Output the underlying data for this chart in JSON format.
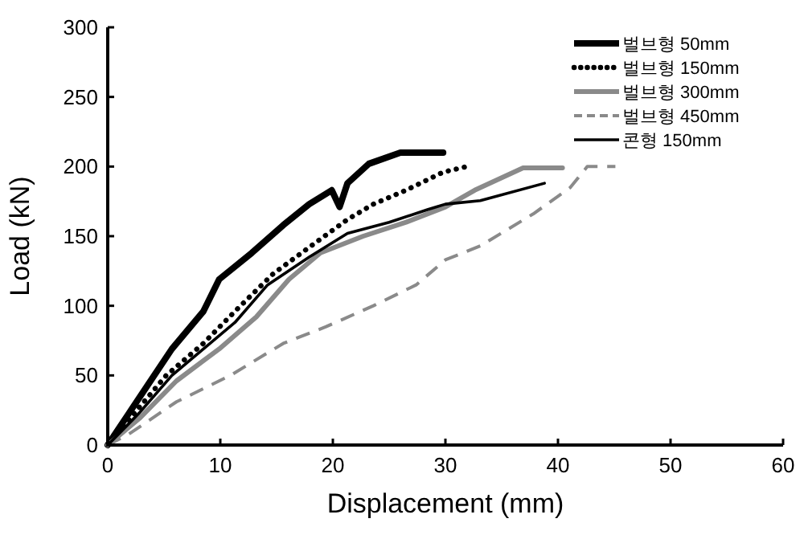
{
  "chart_data": {
    "type": "line",
    "xlabel": "Displacement (mm)",
    "ylabel": "Load (kN)",
    "xlim": [
      0,
      60
    ],
    "xticks": [
      0,
      10,
      20,
      30,
      40,
      50,
      60
    ],
    "ylim": [
      0,
      300
    ],
    "yticks": [
      0,
      50,
      100,
      150,
      200,
      250,
      300
    ],
    "grid": false,
    "legend": "top right",
    "marker": "none",
    "series": [
      {
        "name": "벌브형 50mm",
        "color": "#000000",
        "line_style": "solid",
        "x": [
          0,
          1.9,
          3.8,
          5.7,
          8.5,
          9.9,
          12.8,
          15.6,
          17.9,
          19.9,
          20.6,
          21.3,
          23.2,
          26,
          29.8
        ],
        "values": [
          0,
          23,
          46,
          69,
          96,
          119,
          138,
          158,
          173,
          183,
          171,
          188,
          202,
          210,
          210
        ]
      },
      {
        "name": "벌브형 150mm",
        "color": "#000000",
        "line_style": "dotted",
        "x": [
          0,
          2.8,
          5.2,
          8.5,
          11.3,
          14.7,
          17.9,
          21.3,
          23.6,
          26.5,
          29.8,
          31.9
        ],
        "values": [
          0,
          27,
          50,
          73,
          96,
          123,
          142,
          162,
          173,
          183,
          196,
          200
        ]
      },
      {
        "name": "벌브형 300mm",
        "color": "#8a8a8a",
        "line_style": "solid",
        "x": [
          0,
          2.8,
          6.1,
          9.9,
          13.2,
          16.1,
          18.9,
          22.7,
          26.5,
          30,
          32.6,
          36.9,
          40.4
        ],
        "values": [
          0,
          19,
          46,
          69,
          92,
          119,
          138,
          150,
          160,
          171,
          183,
          199,
          199
        ]
      },
      {
        "name": "벌브형 450mm",
        "color": "#8a8a8a",
        "line_style": "dashed",
        "x": [
          0,
          1.9,
          6.1,
          10.9,
          15.6,
          19.4,
          23.6,
          27.4,
          30,
          33.1,
          37.8,
          41.1,
          42.6,
          45.1
        ],
        "values": [
          0,
          8,
          31,
          50,
          73,
          85,
          100,
          115,
          133,
          143,
          166,
          185,
          200,
          200
        ]
      },
      {
        "name": "콘형 150mm",
        "color": "#000000",
        "line_style": "solid",
        "x": [
          0,
          2.8,
          5.7,
          8.5,
          11.3,
          14.2,
          17.9,
          21.3,
          25,
          28.4,
          30,
          33.1,
          38.8
        ],
        "values": [
          0,
          23,
          50,
          69,
          88,
          115,
          135,
          152,
          160,
          169,
          173,
          175.5,
          188
        ]
      }
    ]
  }
}
